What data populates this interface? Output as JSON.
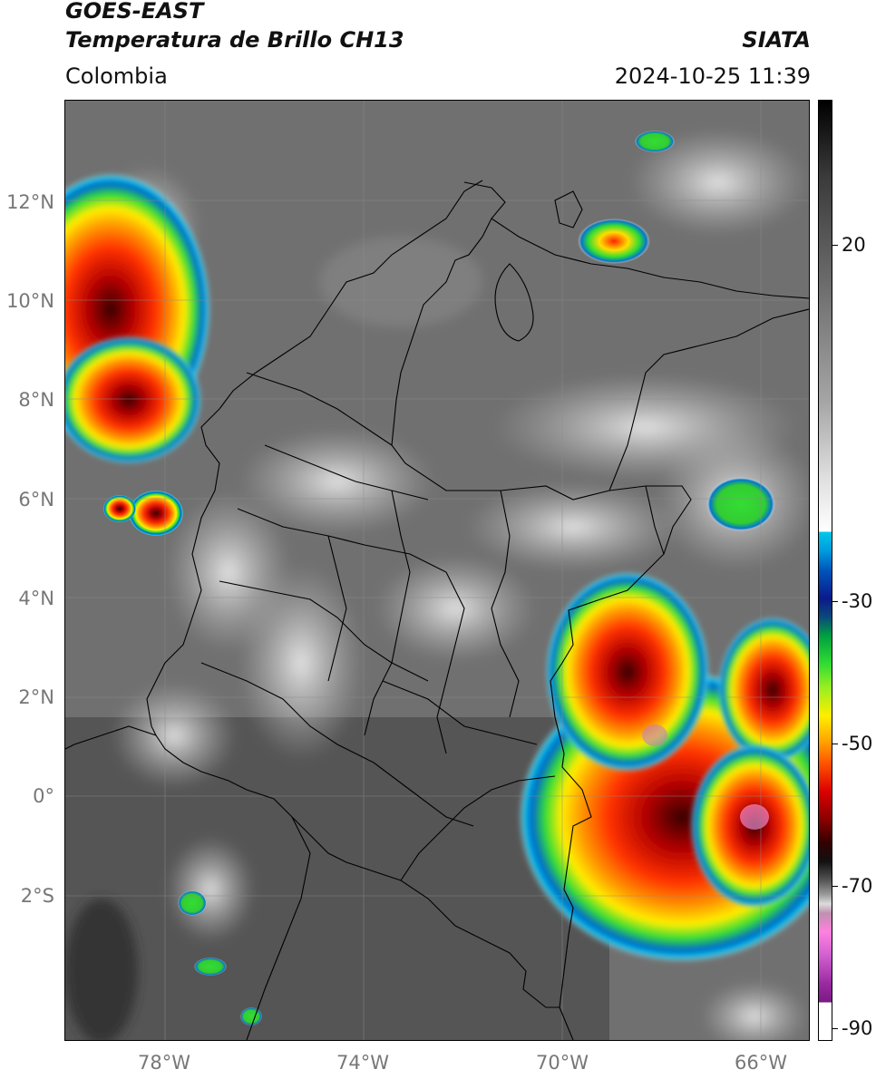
{
  "header": {
    "satellite": "GOES-EAST",
    "product": "Temperatura de Brillo CH13",
    "brand": "SIATA",
    "region": "Colombia",
    "datetime": "2024-10-25 11:39"
  },
  "map": {
    "lat_labels": [
      {
        "text": "12°N",
        "value": 12
      },
      {
        "text": "10°N",
        "value": 10
      },
      {
        "text": "8°N",
        "value": 8
      },
      {
        "text": "6°N",
        "value": 6
      },
      {
        "text": "4°N",
        "value": 4
      },
      {
        "text": "2°N",
        "value": 2
      },
      {
        "text": "0°",
        "value": 0
      },
      {
        "text": "2°S",
        "value": -2
      }
    ],
    "lon_labels": [
      {
        "text": "78°W",
        "value": -78
      },
      {
        "text": "74°W",
        "value": -74
      },
      {
        "text": "70°W",
        "value": -70
      },
      {
        "text": "66°W",
        "value": -66
      }
    ],
    "lon_range": [
      -80,
      -65
    ],
    "lat_range": [
      -4.8,
      14.1
    ]
  },
  "colorbar": {
    "ticks": [
      {
        "text": "20",
        "value": 20
      },
      {
        "text": "-30",
        "value": -30
      },
      {
        "text": "-50",
        "value": -50
      },
      {
        "text": "-70",
        "value": -70
      },
      {
        "text": "-90",
        "value": -90
      }
    ],
    "range": [
      35,
      -92
    ]
  },
  "colors": {
    "cloud_cold": "#d80000",
    "cloud_orange": "#ff8800",
    "cloud_yellow": "#ffe000",
    "cloud_green": "#33dd33",
    "cloud_blue": "#0077cc",
    "cloud_cyan": "#00c8e8"
  }
}
